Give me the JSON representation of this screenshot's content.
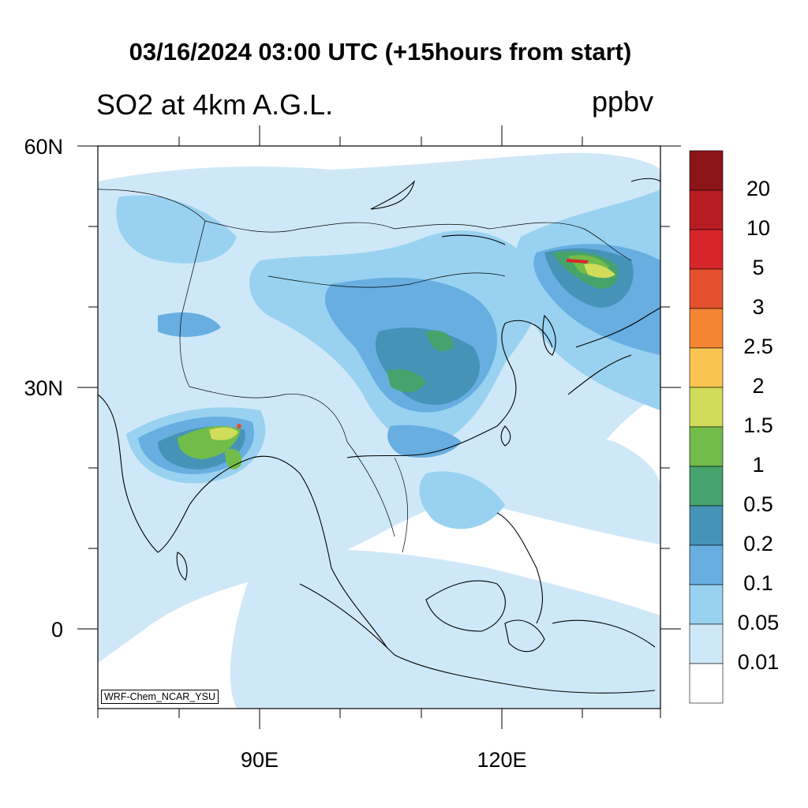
{
  "title": "03/16/2024 03:00 UTC (+15hours from start)",
  "subtitle": "SO2 at 4km A.G.L.",
  "units": "ppbv",
  "credit": "WRF-Chem_NCAR_YSU",
  "axes": {
    "lat_labels": [
      "60N",
      "30N",
      "0"
    ],
    "lon_labels": [
      "90E",
      "120E"
    ]
  },
  "colorbar": {
    "labels": [
      "20",
      "10",
      "5",
      "3",
      "2.5",
      "2",
      "1.5",
      "1",
      "0.5",
      "0.2",
      "0.1",
      "0.05",
      "0.01"
    ],
    "colors_top_to_bottom": [
      "#8b1518",
      "#b71c22",
      "#d7262b",
      "#e4512c",
      "#f48533",
      "#f9c450",
      "#d1dc5a",
      "#72bc4a",
      "#46a36b",
      "#4693b8",
      "#68aee0",
      "#98d2f0",
      "#cfe8f8",
      "#ffffff"
    ]
  }
}
